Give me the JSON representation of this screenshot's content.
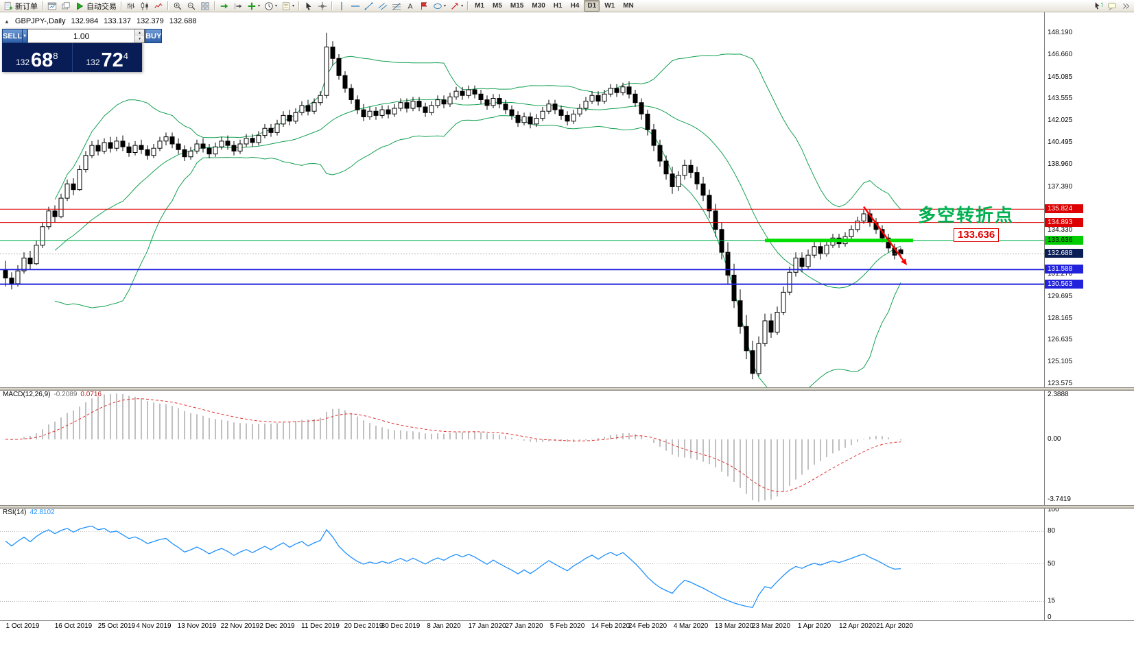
{
  "toolbar": {
    "items": [
      {
        "name": "new-order-button",
        "icon": "doc-plus",
        "label": "新订单"
      },
      {
        "sep": true
      },
      {
        "name": "chart-window-icon",
        "icon": "chart-window"
      },
      {
        "name": "profiles-icon",
        "icon": "layers"
      },
      {
        "name": "autotrading-button",
        "icon": "play-green",
        "label": "自动交易"
      },
      {
        "sep": true
      },
      {
        "name": "bar-chart-icon",
        "icon": "bars"
      },
      {
        "name": "candlestick-chart-icon",
        "icon": "candles"
      },
      {
        "name": "line-chart-icon",
        "icon": "polyline"
      },
      {
        "sep": true
      },
      {
        "name": "zoom-in-icon",
        "icon": "zoom-in"
      },
      {
        "name": "zoom-out-icon",
        "icon": "zoom-out"
      },
      {
        "name": "tile-windows-icon",
        "icon": "grid4"
      },
      {
        "sep": true
      },
      {
        "name": "auto-scroll-icon",
        "icon": "arrow-right-green"
      },
      {
        "name": "chart-shift-icon",
        "icon": "arrow-shift"
      },
      {
        "name": "indicators-icon",
        "icon": "plus-green",
        "caret": true
      },
      {
        "name": "periods-icon",
        "icon": "clock",
        "caret": true
      },
      {
        "name": "templates-icon",
        "icon": "page",
        "caret": true
      },
      {
        "sep": true
      },
      {
        "name": "cursor-icon",
        "icon": "pointer"
      },
      {
        "name": "crosshair-icon",
        "icon": "cross"
      },
      {
        "sep": true
      },
      {
        "name": "vertical-line-icon",
        "icon": "vline"
      },
      {
        "name": "horizontal-line-icon",
        "icon": "hline"
      },
      {
        "name": "trendline-icon",
        "icon": "diag"
      },
      {
        "name": "channel-icon",
        "icon": "channel"
      },
      {
        "name": "fibonacci-icon",
        "icon": "fib"
      },
      {
        "name": "text-icon",
        "icon": "textA"
      },
      {
        "name": "arrow-label-icon",
        "icon": "flag"
      },
      {
        "name": "shapes-icon",
        "icon": "ellipse",
        "caret": true
      },
      {
        "name": "arrows-icon",
        "icon": "arrow-ne",
        "caret": true
      },
      {
        "sep": true
      }
    ],
    "timeframes": {
      "items": [
        "M1",
        "M5",
        "M15",
        "M30",
        "H1",
        "H4",
        "D1",
        "W1",
        "MN"
      ],
      "active": "D1"
    },
    "right_items": [
      {
        "name": "help-cursor-icon",
        "icon": "help"
      },
      {
        "name": "community-icon",
        "icon": "chat"
      },
      {
        "name": "toolbar-overflow-icon",
        "icon": "chevrons"
      }
    ]
  },
  "chart_header": {
    "icon": "▲",
    "symbol": "GBPJPY-,Daily",
    "open": "132.984",
    "high": "133.137",
    "low": "132.379",
    "close": "132.688"
  },
  "trade_panel": {
    "sell_label": "SELL",
    "buy_label": "BUY",
    "volume": "1.00",
    "sell_price_small": "132",
    "sell_price_big": "68",
    "sell_price_sup": "8",
    "buy_price_small": "132",
    "buy_price_big": "72",
    "buy_price_sup": "4"
  },
  "annotation": {
    "text": "多空转折点",
    "color": "#00b050",
    "price_tag": "133.636"
  },
  "price_axis": {
    "ticks": [
      "148.190",
      "146.660",
      "145.085",
      "143.555",
      "142.025",
      "140.495",
      "138.960",
      "137.390",
      "134.330",
      "131.270",
      "129.695",
      "128.165",
      "126.635",
      "125.105",
      "123.575"
    ],
    "badges": [
      {
        "label": "135.824",
        "price": 135.824,
        "bg": "#dd0000",
        "fg": "#ffffff"
      },
      {
        "label": "134.893",
        "price": 134.893,
        "bg": "#dd0000",
        "fg": "#ffffff"
      },
      {
        "label": "133.636",
        "price": 133.636,
        "bg": "#00cc00",
        "fg": "#000000"
      },
      {
        "label": "132.688",
        "price": 132.688,
        "bg": "#0a1d55",
        "fg": "#ffffff"
      },
      {
        "label": "131.588",
        "price": 131.588,
        "bg": "#2222dd",
        "fg": "#ffffff"
      },
      {
        "label": "130.563",
        "price": 130.563,
        "bg": "#2222dd",
        "fg": "#ffffff"
      }
    ]
  },
  "macd": {
    "name": "MACD(12,26,9)",
    "value_main": "-0.2089",
    "value_signal": "0.0716",
    "axis_top": "2.3888",
    "axis_zero": "0.00",
    "axis_bottom": "-3.7419"
  },
  "rsi": {
    "name": "RSI(14)",
    "value": "42.8102",
    "levels": [
      "100",
      "80",
      "50",
      "15",
      "0"
    ]
  },
  "time_axis": {
    "labels": [
      {
        "text": "1 Oct 2019",
        "index": 0
      },
      {
        "text": "16 Oct 2019",
        "index": 11
      },
      {
        "text": "25 Oct 2019",
        "index": 18
      },
      {
        "text": "4 Nov 2019",
        "index": 24
      },
      {
        "text": "13 Nov 2019",
        "index": 31
      },
      {
        "text": "22 Nov 2019",
        "index": 38
      },
      {
        "text": "2 Dec 2019",
        "index": 44
      },
      {
        "text": "11 Dec 2019",
        "index": 51
      },
      {
        "text": "20 Dec 2019",
        "index": 58
      },
      {
        "text": "30 Dec 2019",
        "index": 64
      },
      {
        "text": "8 Jan 2020",
        "index": 71
      },
      {
        "text": "17 Jan 2020",
        "index": 78
      },
      {
        "text": "27 Jan 2020",
        "index": 84
      },
      {
        "text": "5 Feb 2020",
        "index": 91
      },
      {
        "text": "14 Feb 2020",
        "index": 98
      },
      {
        "text": "24 Feb 2020",
        "index": 104
      },
      {
        "text": "4 Mar 2020",
        "index": 111
      },
      {
        "text": "13 Mar 2020",
        "index": 118
      },
      {
        "text": "23 Mar 2020",
        "index": 124
      },
      {
        "text": "1 Apr 2020",
        "index": 131
      },
      {
        "text": "12 Apr 2020",
        "index": 138
      },
      {
        "text": "21 Apr 2020",
        "index": 144
      }
    ]
  },
  "chart_data": {
    "type": "candlestick",
    "symbol": "GBPJPY",
    "period": "Daily",
    "ohlc_current": {
      "open": 132.984,
      "high": 133.137,
      "low": 132.379,
      "close": 132.688
    },
    "style": {
      "up_fill": "#ffffff",
      "down_fill": "#000000",
      "outline": "#000000"
    },
    "indicators": {
      "bollinger": {
        "period": 20,
        "deviation": 2,
        "color": "#12a050"
      },
      "macd": {
        "fast": 12,
        "slow": 26,
        "signal": 9,
        "histogram_color": "#c0c0c0",
        "signal_color": "#e03232"
      },
      "rsi": {
        "period": 14,
        "color": "#1e90ff",
        "level_color": "#b5b5b5"
      }
    },
    "levels": [
      {
        "price": 135.824,
        "color": "#dd0000",
        "width": 1
      },
      {
        "price": 134.893,
        "color": "#dd0000",
        "width": 1
      },
      {
        "price": 133.636,
        "color": "#00b050",
        "width": 1
      },
      {
        "price": 132.688,
        "color": "#b0b0b0",
        "width": 1,
        "dash": "2,2"
      },
      {
        "price": 131.588,
        "color": "#2222dd",
        "width": 2
      },
      {
        "price": 130.563,
        "color": "#2222dd",
        "width": 2
      }
    ],
    "trend_segment": {
      "price": 133.636,
      "from_index": 123,
      "to_index": 147,
      "color": "#00dd00",
      "width": 5
    },
    "arrow": {
      "from": {
        "index": 139,
        "price": 136.0
      },
      "to": {
        "index": 146,
        "price": 131.9
      },
      "color": "#ff0000"
    },
    "candles": [
      [
        131.6,
        132.2,
        130.4,
        131.0
      ],
      [
        131.0,
        131.4,
        130.2,
        130.6
      ],
      [
        130.6,
        131.9,
        130.4,
        131.5
      ],
      [
        131.5,
        132.8,
        131.3,
        132.4
      ],
      [
        132.4,
        132.9,
        131.6,
        132.0
      ],
      [
        132.0,
        133.6,
        131.9,
        133.3
      ],
      [
        133.3,
        134.9,
        133.1,
        134.6
      ],
      [
        134.6,
        136.0,
        134.4,
        135.7
      ],
      [
        135.7,
        136.1,
        134.9,
        135.3
      ],
      [
        135.3,
        136.9,
        135.2,
        136.6
      ],
      [
        136.6,
        137.9,
        136.4,
        137.6
      ],
      [
        137.6,
        138.0,
        136.8,
        137.2
      ],
      [
        137.2,
        138.9,
        137.1,
        138.6
      ],
      [
        138.6,
        139.9,
        138.4,
        139.6
      ],
      [
        139.6,
        140.6,
        139.4,
        140.3
      ],
      [
        140.3,
        140.7,
        139.6,
        139.9
      ],
      [
        139.9,
        140.8,
        139.7,
        140.5
      ],
      [
        140.5,
        140.9,
        139.8,
        140.1
      ],
      [
        140.1,
        140.9,
        139.9,
        140.6
      ],
      [
        140.6,
        141.0,
        139.9,
        140.2
      ],
      [
        140.2,
        140.5,
        139.5,
        139.8
      ],
      [
        139.8,
        140.6,
        139.6,
        140.3
      ],
      [
        140.3,
        140.7,
        139.7,
        140.0
      ],
      [
        140.0,
        140.3,
        139.3,
        139.6
      ],
      [
        139.6,
        140.4,
        139.4,
        140.1
      ],
      [
        140.1,
        140.9,
        139.9,
        140.6
      ],
      [
        140.6,
        141.2,
        140.3,
        140.9
      ],
      [
        140.9,
        141.2,
        140.1,
        140.4
      ],
      [
        140.4,
        140.8,
        139.7,
        140.0
      ],
      [
        140.0,
        140.3,
        139.2,
        139.5
      ],
      [
        139.5,
        140.2,
        139.3,
        139.9
      ],
      [
        139.9,
        140.7,
        139.7,
        140.4
      ],
      [
        140.4,
        140.8,
        139.8,
        140.1
      ],
      [
        140.1,
        140.4,
        139.4,
        139.7
      ],
      [
        139.7,
        140.5,
        139.5,
        140.2
      ],
      [
        140.2,
        140.9,
        140.0,
        140.6
      ],
      [
        140.6,
        141.0,
        140.0,
        140.3
      ],
      [
        140.3,
        140.6,
        139.6,
        139.9
      ],
      [
        139.9,
        140.7,
        139.7,
        140.4
      ],
      [
        140.4,
        141.1,
        140.2,
        140.8
      ],
      [
        140.8,
        141.1,
        140.2,
        140.5
      ],
      [
        140.5,
        141.3,
        140.3,
        141.0
      ],
      [
        141.0,
        141.8,
        140.8,
        141.5
      ],
      [
        141.5,
        141.8,
        140.9,
        141.2
      ],
      [
        141.2,
        142.1,
        141.0,
        141.8
      ],
      [
        141.8,
        142.7,
        141.6,
        142.4
      ],
      [
        142.4,
        142.8,
        141.7,
        142.0
      ],
      [
        142.0,
        142.9,
        141.8,
        142.6
      ],
      [
        142.6,
        143.4,
        142.4,
        143.1
      ],
      [
        143.1,
        143.5,
        142.4,
        142.7
      ],
      [
        142.7,
        143.6,
        142.5,
        143.3
      ],
      [
        143.3,
        144.1,
        143.1,
        143.8
      ],
      [
        143.8,
        148.2,
        143.6,
        147.2
      ],
      [
        147.2,
        147.6,
        145.9,
        146.4
      ],
      [
        146.4,
        146.7,
        144.9,
        145.2
      ],
      [
        145.2,
        145.5,
        144.0,
        144.3
      ],
      [
        144.3,
        144.6,
        143.2,
        143.5
      ],
      [
        143.5,
        143.8,
        142.5,
        142.8
      ],
      [
        142.8,
        143.2,
        142.0,
        142.3
      ],
      [
        142.3,
        143.0,
        142.1,
        142.7
      ],
      [
        142.7,
        143.0,
        142.1,
        142.4
      ],
      [
        142.4,
        143.1,
        142.2,
        142.8
      ],
      [
        142.8,
        143.1,
        142.2,
        142.5
      ],
      [
        142.5,
        143.2,
        142.3,
        142.9
      ],
      [
        142.9,
        143.6,
        142.7,
        143.3
      ],
      [
        143.3,
        143.6,
        142.6,
        142.9
      ],
      [
        142.9,
        143.7,
        142.7,
        143.4
      ],
      [
        143.4,
        143.7,
        142.7,
        143.0
      ],
      [
        143.0,
        143.3,
        142.3,
        142.6
      ],
      [
        142.6,
        143.4,
        142.4,
        143.1
      ],
      [
        143.1,
        143.8,
        142.9,
        143.5
      ],
      [
        143.5,
        143.8,
        142.9,
        143.2
      ],
      [
        143.2,
        144.0,
        143.0,
        143.7
      ],
      [
        143.7,
        144.4,
        143.5,
        144.1
      ],
      [
        144.1,
        144.4,
        143.5,
        143.8
      ],
      [
        143.8,
        144.5,
        143.6,
        144.2
      ],
      [
        144.2,
        144.5,
        143.6,
        143.9
      ],
      [
        143.9,
        144.2,
        143.2,
        143.5
      ],
      [
        143.5,
        143.8,
        142.8,
        143.1
      ],
      [
        143.1,
        143.9,
        142.9,
        143.6
      ],
      [
        143.6,
        143.9,
        142.9,
        143.2
      ],
      [
        143.2,
        143.5,
        142.5,
        142.8
      ],
      [
        142.8,
        143.1,
        142.1,
        142.4
      ],
      [
        142.4,
        142.7,
        141.6,
        141.9
      ],
      [
        141.9,
        142.6,
        141.7,
        142.3
      ],
      [
        142.3,
        142.6,
        141.5,
        141.8
      ],
      [
        141.8,
        142.5,
        141.6,
        142.2
      ],
      [
        142.2,
        143.0,
        142.0,
        142.7
      ],
      [
        142.7,
        143.5,
        142.5,
        143.2
      ],
      [
        143.2,
        143.5,
        142.5,
        142.8
      ],
      [
        142.8,
        143.1,
        142.1,
        142.4
      ],
      [
        142.4,
        142.7,
        141.7,
        142.0
      ],
      [
        142.0,
        142.8,
        141.8,
        142.5
      ],
      [
        142.5,
        143.2,
        142.3,
        142.9
      ],
      [
        142.9,
        143.7,
        142.7,
        143.4
      ],
      [
        143.4,
        144.1,
        143.2,
        143.8
      ],
      [
        143.8,
        144.1,
        143.1,
        143.4
      ],
      [
        143.4,
        144.2,
        143.2,
        143.9
      ],
      [
        143.9,
        144.6,
        143.7,
        144.3
      ],
      [
        144.3,
        144.6,
        143.7,
        144.0
      ],
      [
        144.0,
        144.7,
        143.8,
        144.4
      ],
      [
        144.4,
        144.8,
        143.6,
        143.9
      ],
      [
        143.9,
        144.2,
        143.0,
        143.3
      ],
      [
        143.3,
        143.6,
        142.1,
        142.5
      ],
      [
        142.5,
        142.8,
        141.0,
        141.4
      ],
      [
        141.4,
        141.8,
        139.9,
        140.3
      ],
      [
        140.3,
        140.7,
        138.8,
        139.2
      ],
      [
        139.2,
        139.6,
        137.9,
        138.3
      ],
      [
        138.3,
        138.8,
        136.9,
        137.4
      ],
      [
        137.4,
        138.5,
        137.1,
        138.2
      ],
      [
        138.2,
        139.3,
        137.9,
        138.9
      ],
      [
        138.9,
        139.3,
        138.0,
        138.4
      ],
      [
        138.4,
        138.8,
        137.2,
        137.6
      ],
      [
        137.6,
        138.1,
        136.4,
        136.8
      ],
      [
        136.8,
        137.2,
        135.2,
        135.7
      ],
      [
        135.7,
        136.2,
        133.9,
        134.4
      ],
      [
        134.4,
        134.9,
        132.3,
        132.8
      ],
      [
        132.8,
        133.5,
        130.6,
        131.2
      ],
      [
        131.2,
        132.0,
        128.9,
        129.4
      ],
      [
        129.4,
        130.2,
        127.1,
        127.6
      ],
      [
        127.6,
        128.4,
        125.3,
        125.9
      ],
      [
        125.9,
        126.6,
        123.9,
        124.3
      ],
      [
        124.3,
        126.9,
        124.1,
        126.4
      ],
      [
        126.4,
        128.5,
        126.2,
        128.0
      ],
      [
        128.0,
        128.5,
        126.8,
        127.2
      ],
      [
        127.2,
        129.0,
        127.0,
        128.6
      ],
      [
        128.6,
        130.4,
        128.4,
        130.0
      ],
      [
        130.0,
        131.8,
        129.8,
        131.4
      ],
      [
        131.4,
        132.8,
        131.1,
        132.4
      ],
      [
        132.4,
        132.8,
        131.4,
        131.8
      ],
      [
        131.8,
        133.0,
        131.6,
        132.6
      ],
      [
        132.6,
        133.6,
        132.4,
        133.2
      ],
      [
        133.2,
        133.5,
        132.3,
        132.7
      ],
      [
        132.7,
        133.6,
        132.5,
        133.3
      ],
      [
        133.3,
        134.1,
        133.1,
        133.8
      ],
      [
        133.8,
        134.1,
        133.1,
        133.4
      ],
      [
        133.4,
        134.2,
        133.2,
        133.9
      ],
      [
        133.9,
        134.7,
        133.7,
        134.4
      ],
      [
        134.4,
        135.3,
        134.2,
        135.0
      ],
      [
        135.0,
        135.8,
        134.8,
        135.5
      ],
      [
        135.5,
        135.8,
        134.6,
        134.9
      ],
      [
        134.9,
        135.2,
        134.1,
        134.4
      ],
      [
        134.4,
        134.7,
        133.5,
        133.8
      ],
      [
        133.8,
        134.1,
        132.8,
        133.1
      ],
      [
        133.1,
        133.4,
        132.3,
        132.6
      ],
      [
        132.98,
        133.14,
        132.38,
        132.69
      ]
    ]
  }
}
